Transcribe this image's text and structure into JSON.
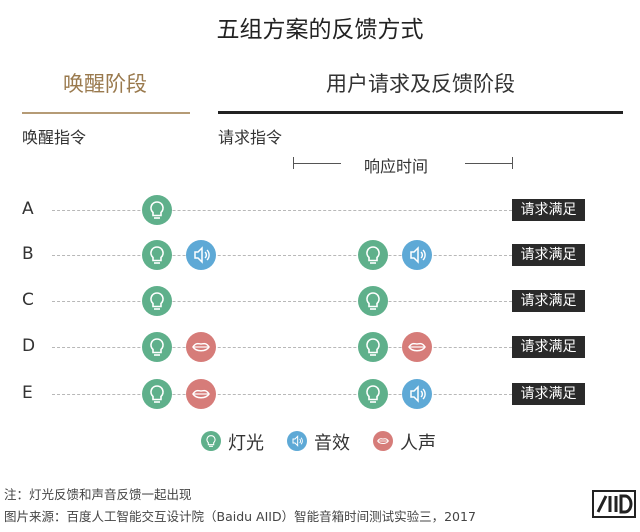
{
  "title": "五组方案的反馈方式",
  "stages": {
    "wake": "唤醒阶段",
    "request": "用户请求及反馈阶段"
  },
  "subheaders": {
    "wake_cmd": "唤醒指令",
    "request_cmd": "请求指令",
    "response_time": "响应时间"
  },
  "rows": [
    {
      "label": "A",
      "wake": [
        "light"
      ],
      "response": [],
      "badge": "请求满足"
    },
    {
      "label": "B",
      "wake": [
        "light",
        "sound"
      ],
      "response": [
        "light",
        "sound"
      ],
      "badge": "请求满足"
    },
    {
      "label": "C",
      "wake": [
        "light"
      ],
      "response": [
        "light"
      ],
      "badge": "请求满足"
    },
    {
      "label": "D",
      "wake": [
        "light",
        "voice"
      ],
      "response": [
        "light",
        "voice"
      ],
      "badge": "请求满足"
    },
    {
      "label": "E",
      "wake": [
        "light",
        "voice"
      ],
      "response": [
        "light",
        "sound"
      ],
      "badge": "请求满足"
    }
  ],
  "legend": {
    "light": "灯光",
    "sound": "音效",
    "voice": "人声"
  },
  "icons": {
    "light": "lightbulb-icon",
    "sound": "speaker-icon",
    "voice": "lips-icon"
  },
  "colors": {
    "light": "#5fb08b",
    "sound": "#5ea9d6",
    "voice": "#d67c79",
    "stage_accent": "#9a7a4e"
  },
  "footer": {
    "note": "注：灯光反馈和声音反馈一起出现",
    "source": "图片来源：百度人工智能交互设计院（Baidu AIID）智能音箱时间测试实验三，2017"
  }
}
